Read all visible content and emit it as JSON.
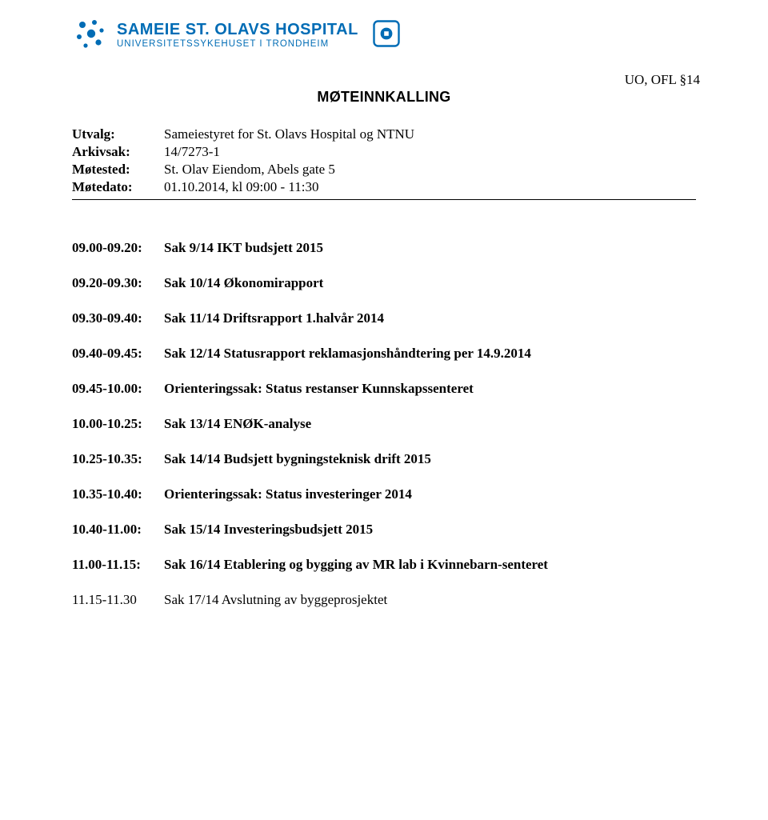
{
  "logo": {
    "main": "SAMEIE ST. OLAVS HOSPITAL",
    "sub": "UNIVERSITETSSYKEHUSET I TRONDHEIM",
    "brand_color": "#006cb5"
  },
  "classification": "UO, OFL §14",
  "title": "MØTEINNKALLING",
  "meta": {
    "labels": {
      "utvalg": "Utvalg:",
      "arkivsak": "Arkivsak:",
      "motested": "Møtested:",
      "motedato": "Møtedato:"
    },
    "values": {
      "utvalg": "Sameiestyret for St. Olavs Hospital og NTNU",
      "arkivsak": "14/7273-1",
      "motested": "St. Olav Eiendom, Abels gate 5",
      "motedato": "01.10.2014, kl 09:00 - 11:30"
    }
  },
  "agenda": [
    {
      "time": "09.00-09.20:",
      "text": "Sak 9/14 IKT budsjett 2015",
      "bold": true
    },
    {
      "time": "09.20-09.30:",
      "text": "Sak 10/14 Økonomirapport",
      "bold": true
    },
    {
      "time": "09.30-09.40:",
      "text": "Sak 11/14 Driftsrapport 1.halvår 2014",
      "bold": true
    },
    {
      "time": "09.40-09.45:",
      "text": "Sak 12/14 Statusrapport reklamasjonshåndtering per 14.9.2014",
      "bold": true
    },
    {
      "time": "09.45-10.00:",
      "text": "Orienteringssak: Status restanser Kunnskapssenteret",
      "bold": true
    },
    {
      "time": "10.00-10.25:",
      "text": "Sak 13/14 ENØK-analyse",
      "bold": true
    },
    {
      "time": "10.25-10.35:",
      "text": "Sak 14/14 Budsjett bygningsteknisk drift 2015",
      "bold": true
    },
    {
      "time": "10.35-10.40:",
      "text": "Orienteringssak: Status investeringer 2014",
      "bold": true
    },
    {
      "time": "10.40-11.00:",
      "text": "Sak 15/14 Investeringsbudsjett 2015",
      "bold": true
    },
    {
      "time": "11.00-11.15:",
      "text": "Sak  16/14 Etablering og bygging av MR lab i Kvinnebarn-senteret",
      "bold": true
    },
    {
      "time": "11.15-11.30",
      "text": "Sak 17/14 Avslutning av byggeprosjektet",
      "bold": false
    }
  ]
}
